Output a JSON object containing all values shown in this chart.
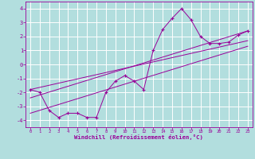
{
  "background_color": "#b2dede",
  "grid_color": "#ffffff",
  "line_color": "#990099",
  "xlim": [
    -0.5,
    23.5
  ],
  "ylim": [
    -4.5,
    4.5
  ],
  "yticks": [
    -4,
    -3,
    -2,
    -1,
    0,
    1,
    2,
    3,
    4
  ],
  "xticks": [
    0,
    1,
    2,
    3,
    4,
    5,
    6,
    7,
    8,
    9,
    10,
    11,
    12,
    13,
    14,
    15,
    16,
    17,
    18,
    19,
    20,
    21,
    22,
    23
  ],
  "xlabel": "Windchill (Refroidissement éolien,°C)",
  "series1_x": [
    0,
    1,
    2,
    3,
    4,
    5,
    6,
    7,
    8,
    9,
    10,
    11,
    12,
    13,
    14,
    15,
    16,
    17,
    18,
    19,
    20,
    21,
    22,
    23
  ],
  "series1_y": [
    -1.8,
    -2.0,
    -3.3,
    -3.8,
    -3.5,
    -3.5,
    -3.8,
    -3.8,
    -2.0,
    -1.2,
    -0.8,
    -1.2,
    -1.8,
    1.0,
    2.5,
    3.3,
    4.0,
    3.2,
    2.0,
    1.5,
    1.5,
    1.6,
    2.1,
    2.4
  ],
  "line2_x": [
    0,
    23
  ],
  "line2_y": [
    -1.8,
    1.7
  ],
  "line3_x": [
    0,
    23
  ],
  "line3_y": [
    -2.4,
    2.4
  ],
  "line4_x": [
    0,
    23
  ],
  "line4_y": [
    -3.5,
    1.3
  ]
}
